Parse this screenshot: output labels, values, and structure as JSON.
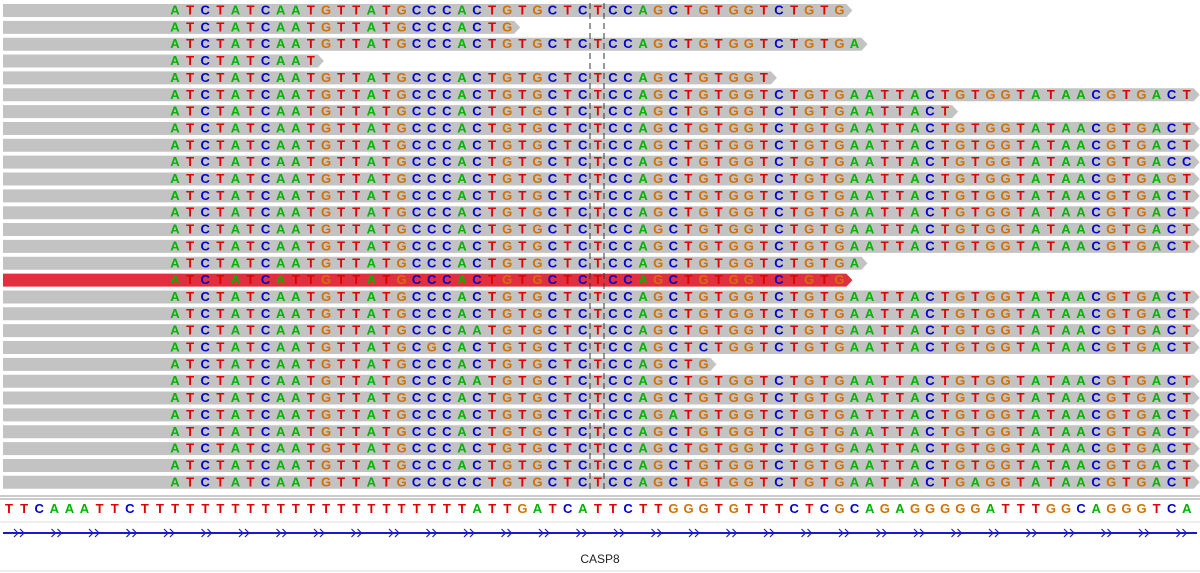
{
  "reads": [
    {
      "sequence": "ATCTATCAATGTTATGCCCACTGTGCTCTCCAGCTGTGGTCTGTG"
    },
    {
      "sequence": "ATCTATCAATGTTATGCCCACTG"
    },
    {
      "sequence": "ATCTATCAATGTTATGCCCACTGTGCTCTCCAGCTGTGGTCTGTGA"
    },
    {
      "sequence": "ATCTATCAAT"
    },
    {
      "sequence": "ATCTATCAATGTTATGCCCACTGTGCTCTCCAGCTGTGGT"
    },
    {
      "sequence": "ATCTATCAATGTTATGCCCACTGTGCTCTCCAGCTGTGGTCTGTGAATTACTGTGGTATAACGTGACT"
    },
    {
      "sequence": "ATCTATCAATGTTATGCCCACTGTGCTCTCCAGCTGTGGTCTGTGAATTACT"
    },
    {
      "sequence": "ATCTATCAATGTTATGCCCACTGTGCTCTCCAGCTGTGGTCTGTGAATTACTGTGGTATAACGTGACT"
    },
    {
      "sequence": "ATCTATCAATGTTATGCCCACTGTGCTCTCCAGCTGTGGTCTGTGAATTACTGTGGTATAACGTGACT"
    },
    {
      "sequence": "ATCTATCAATGTTATGCCCACTGTGCTCTCCAGCTGTGGTCTGTGAATTACTGTGGTATAACGTGACC"
    },
    {
      "sequence": "ATCTATCAATGTTATGCCCACTGTGCTCTCCAGCTGTGGTCTGTGAATTACTGTGGTATAACGTGAGT"
    },
    {
      "sequence": "ATCTATCAATGTTATGCCCACTGTGCTCTCCAGCTGTGGTCTGTGAATTACTGTGGTATAACGTGACT"
    },
    {
      "sequence": "ATCTATCAATGTTATGCCCACTGTGCTCTCCAGCTGTGGTCTGTGAATTACTGTGGTATAACGTGACT"
    },
    {
      "sequence": "ATCTATCAATGTTATGCCCACTGTGCTCTCCAGCTGTGGTCTGTGAATTACTGTGGTATAACGTGACT"
    },
    {
      "sequence": "ATCTATCAATGTTATGCCCACTGTGCTCTCCAGCTGTGGTCTGTGAATTACTGTGGTATAACGTGACT"
    },
    {
      "sequence": "ATCTATCAATGTTATGCCCACTGTGCTCTCCAGCTGTGGTCTGTGA"
    },
    {
      "sequence": "ATCTATCATTGTTATGCCCACTGTGCTCTCCAGCTGTGGTCTGTG",
      "selected": true
    },
    {
      "sequence": "ATCTATCAATGTTATGCCCACTGTGCTCTCCAGCTGTGGTCTGTGAATTACTGTGGTATAACGTGACT"
    },
    {
      "sequence": "ATCTATCAATGTTATGCCCACTGTGCTCTCCAGCTGTGGTCTGTGAATTACTGTGGTATAACGTGACT"
    },
    {
      "sequence": "ATCTATCAATGTTATGCCCAATGTGCTCTCCAGCTGTGGTCTGTGAATTACTGTGGTATAACGTGACT"
    },
    {
      "sequence": "ATCTATCAATGTTATGCGCACTGTGCTCTCCAGCTCTGGTCTGTGAATTACTGTGGTATAACGTGACT"
    },
    {
      "sequence": "ATCTATCAATGTTATGCCCACTGTGCTCTCCAGCTG"
    },
    {
      "sequence": "ATCTATCAATGTTATGCCCAATGTGCTCTCCAGCTGTGGTCTGTGAATTACTGTGGTATAACGTGACT"
    },
    {
      "sequence": "ATCTATCAATGTTATGCCCACTGTGCTCTCCAGCTGTGGTCTGTGAATTACTGTGGTATAACGTGACT"
    },
    {
      "sequence": "ATCTATCAATGTTATGCCCACTGTGCTCTCCAGATGTGGTCTGTGATTTACTGTGGTATAACGTGACT"
    },
    {
      "sequence": "ATCTATCAATGTTATGCCCACTGTGCTCTCCAGCTGTGGTCTGTGAATTACTGTGGTATAACGTGACT"
    },
    {
      "sequence": "ATCTATCAATGTTATGCCCACTGTGCTCTCCAGCTGTGGTCTGTGAATTACTGTGGTATAACGTGACT"
    },
    {
      "sequence": "ATCTATCAATGTTATGCCCACTGTGCTCTCCAGCTGTGGTCTGTGAATTACTGTGGTATAACGTGACT"
    },
    {
      "sequence": "ATCTATCAATGTTATGCCCCCTGTGCTCTCCAGCTGTGGTCTGTGAATTACTGAGGTATAACGTGACT"
    }
  ],
  "reference": "TTCAAATTCTTTTTTTTTTTTTTTTTTTTTTATTGATCATTCTTGGGTGTTTCTCGCAGAGGGGGATTTGGCAGGGTCA",
  "gene": {
    "name": "CASP8"
  }
}
